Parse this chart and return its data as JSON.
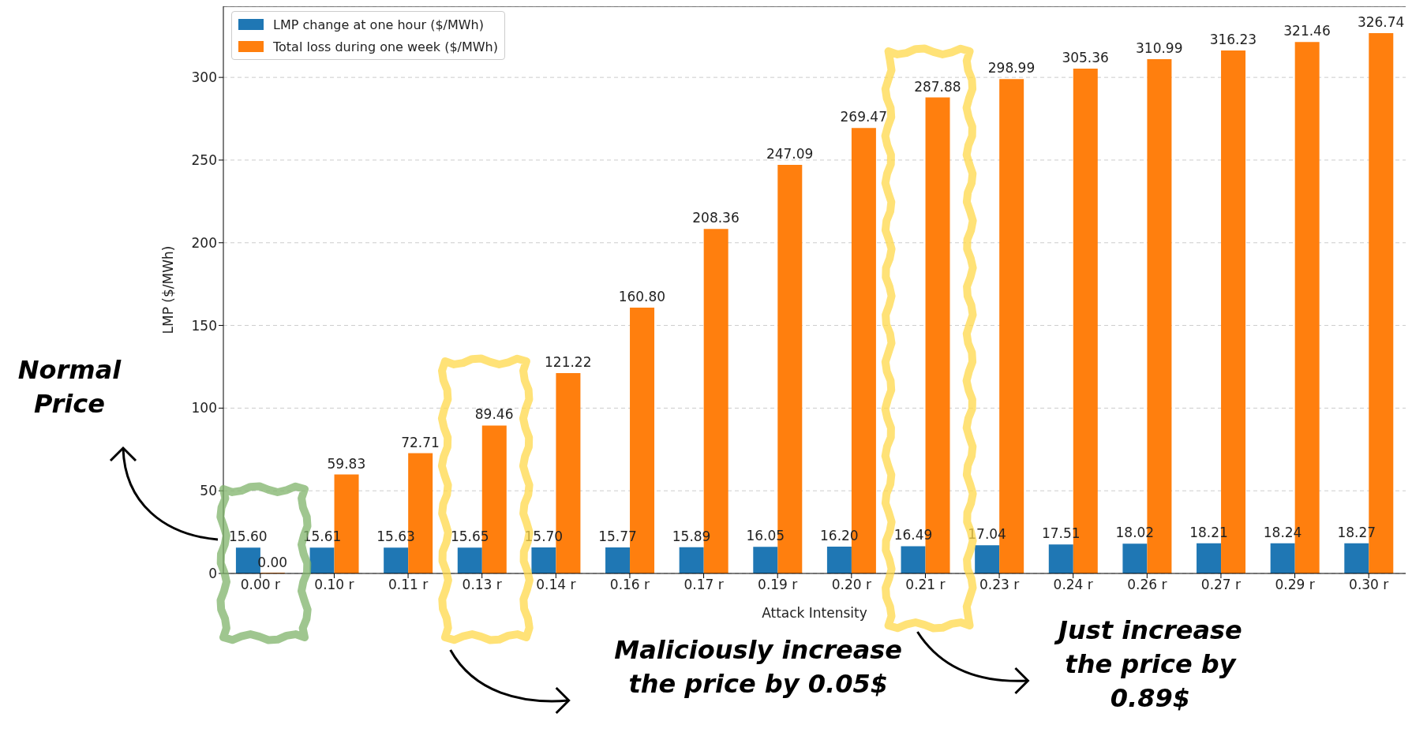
{
  "chart_data": {
    "type": "bar",
    "xlabel": "Attack Intensity",
    "ylabel": "LMP ($/MWh)",
    "categories": [
      "0.00 r",
      "0.10 r",
      "0.11 r",
      "0.13 r",
      "0.14 r",
      "0.16 r",
      "0.17 r",
      "0.19 r",
      "0.20 r",
      "0.21 r",
      "0.23 r",
      "0.24 r",
      "0.26 r",
      "0.27 r",
      "0.29 r",
      "0.30 r"
    ],
    "series": [
      {
        "name": "LMP change at one hour ($/MWh)",
        "color": "#1f77b4",
        "values": [
          15.6,
          15.61,
          15.63,
          15.65,
          15.7,
          15.77,
          15.89,
          16.05,
          16.2,
          16.49,
          17.04,
          17.51,
          18.02,
          18.21,
          18.24,
          18.27
        ],
        "value_labels": [
          "15.60",
          "15.61",
          "15.63",
          "15.65",
          "15.70",
          "15.77",
          "15.89",
          "16.05",
          "16.20",
          "16.49",
          "17.04",
          "17.51",
          "18.02",
          "18.21",
          "18.24",
          "18.27"
        ]
      },
      {
        "name": "Total loss during one week ($/MWh)",
        "color": "#ff7f0e",
        "values": [
          0.0,
          59.83,
          72.71,
          89.46,
          121.22,
          160.8,
          208.36,
          247.09,
          269.47,
          287.88,
          298.99,
          305.36,
          310.99,
          316.23,
          321.46,
          326.74
        ],
        "value_labels": [
          "0.00",
          "59.83",
          "72.71",
          "89.46",
          "121.22",
          "160.80",
          "208.36",
          "247.09",
          "269.47",
          "287.88",
          "298.99",
          "305.36",
          "310.99",
          "316.23",
          "321.46",
          "326.74"
        ]
      }
    ],
    "ylim": [
      0,
      343
    ],
    "yticks": [
      0,
      50,
      100,
      150,
      200,
      250,
      300
    ],
    "grid": "y",
    "legend": "top left",
    "annotations": [
      "Normal Price",
      "Maliciously increase the price by 0.05$",
      "Just increase the price by 0.89$"
    ]
  }
}
